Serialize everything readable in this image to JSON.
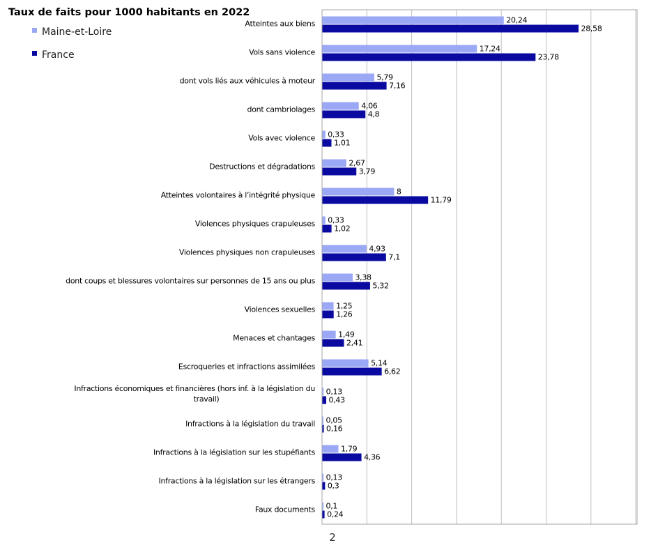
{
  "chart_data": {
    "type": "bar",
    "orientation": "horizontal",
    "title": "Taux de faits pour 1000 habitants en 2022",
    "legend_position": "top-left",
    "grid": true,
    "xlim": [
      0,
      35
    ],
    "categories": [
      [
        "Atteintes aux biens"
      ],
      [
        "Vols sans violence"
      ],
      [
        "dont vols liés aux véhicules à moteur"
      ],
      [
        "dont cambriolages"
      ],
      [
        "Vols avec violence"
      ],
      [
        "Destructions et dégradations"
      ],
      [
        "Atteintes volontaires à l’intégrité physique"
      ],
      [
        "Violences physiques crapuleuses"
      ],
      [
        "Violences physiques non crapuleuses"
      ],
      [
        "dont coups et blessures volontaires sur personnes de 15 ans ou plus"
      ],
      [
        "Violences sexuelles"
      ],
      [
        "Menaces et chantages"
      ],
      [
        "Escroqueries et infractions assimilées"
      ],
      [
        "Infractions économiques  et financières (hors inf. à la législation du",
        "travail)"
      ],
      [
        "Infractions à la législation du travail"
      ],
      [
        "Infractions à la législation sur les stupéfiants"
      ],
      [
        "Infractions à la législation sur les étrangers"
      ],
      [
        "Faux documents"
      ]
    ],
    "series": [
      {
        "name": "Maine-et-Loire",
        "color": "#9BA8F5",
        "values": [
          20.24,
          17.24,
          5.79,
          4.06,
          0.33,
          2.67,
          8,
          0.33,
          4.93,
          3.38,
          1.25,
          1.49,
          5.14,
          0.13,
          0.05,
          1.79,
          0.13,
          0.1
        ],
        "labels": [
          "20,24",
          "17,24",
          "5,79",
          "4,06",
          "0,33",
          "2,67",
          "8",
          "0,33",
          "4,93",
          "3,38",
          "1,25",
          "1,49",
          "5,14",
          "0,13",
          "0,05",
          "1,79",
          "0,13",
          "0,1"
        ]
      },
      {
        "name": "France",
        "color": "#0A0AA0",
        "values": [
          28.58,
          23.78,
          7.16,
          4.8,
          1.01,
          3.79,
          11.79,
          1.02,
          7.1,
          5.32,
          1.26,
          2.41,
          6.62,
          0.43,
          0.16,
          4.36,
          0.3,
          0.24
        ],
        "labels": [
          "28,58",
          "23,78",
          "7,16",
          "4,8",
          "1,01",
          "3,79",
          "11,79",
          "1,02",
          "7,1",
          "5,32",
          "1,26",
          "2,41",
          "6,62",
          "0,43",
          "0,16",
          "4,36",
          "0,3",
          "0,24"
        ]
      }
    ]
  },
  "page_number": "2",
  "colors": {
    "grid": "#BFBFBF",
    "axis": "#A6A6A6"
  }
}
